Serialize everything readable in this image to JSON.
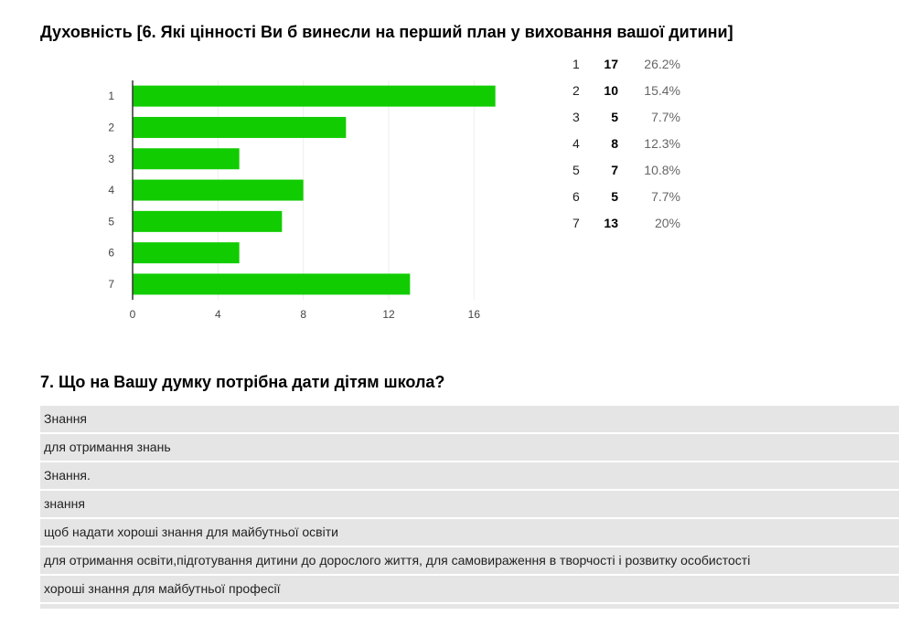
{
  "question1": {
    "title": "Духовність [6. Які цінності Ви б винесли на перший план у виховання вашої дитини]"
  },
  "chart_data": {
    "type": "bar",
    "orientation": "horizontal",
    "categories": [
      "1",
      "2",
      "3",
      "4",
      "5",
      "6",
      "7"
    ],
    "values": [
      17,
      10,
      5,
      8,
      7,
      5,
      13
    ],
    "xlim": [
      0,
      18
    ],
    "xticks": [
      "0",
      "4",
      "8",
      "12",
      "16"
    ],
    "grid": true,
    "bar_color": "#11cc00",
    "title": "",
    "xlabel": "",
    "ylabel": ""
  },
  "stats": [
    {
      "label": "1",
      "count": "17",
      "percent": "26.2%"
    },
    {
      "label": "2",
      "count": "10",
      "percent": "15.4%"
    },
    {
      "label": "3",
      "count": "5",
      "percent": "7.7%"
    },
    {
      "label": "4",
      "count": "8",
      "percent": "12.3%"
    },
    {
      "label": "5",
      "count": "7",
      "percent": "10.8%"
    },
    {
      "label": "6",
      "count": "5",
      "percent": "7.7%"
    },
    {
      "label": "7",
      "count": "13",
      "percent": "20%"
    }
  ],
  "question2": {
    "title": "7. Що на Вашу думку потрібна дати дітям школа?",
    "answers": [
      "Знання",
      "для отримання знань",
      "Знання.",
      "знання",
      "щоб надати хороші знання для майбутньої освіти",
      "для отримання освіти,підготування дитини до дорослого життя, для самовираження в творчості і розвитку особистості",
      "хороші знання для майбутньої професії"
    ]
  }
}
